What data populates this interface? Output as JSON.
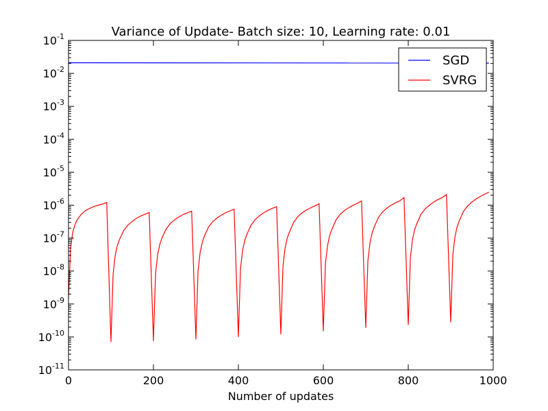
{
  "chart_data": {
    "type": "line",
    "title": "Variance of Update- Batch size: 10, Learning rate: 0.01",
    "xlabel": "Number of updates",
    "ylabel": "",
    "xlim": [
      0,
      1000
    ],
    "ylim": [
      1e-11,
      0.1
    ],
    "yscale": "log",
    "grid": false,
    "legend_position": "top-right",
    "x_ticks": [
      0,
      200,
      400,
      600,
      800,
      1000
    ],
    "y_ticks": [
      {
        "base": "10",
        "exp": "-11",
        "value": 1e-11
      },
      {
        "base": "10",
        "exp": "-10",
        "value": 1e-10
      },
      {
        "base": "10",
        "exp": "-9",
        "value": 1e-09
      },
      {
        "base": "10",
        "exp": "-8",
        "value": 1e-08
      },
      {
        "base": "10",
        "exp": "-7",
        "value": 1e-07
      },
      {
        "base": "10",
        "exp": "-6",
        "value": 1e-06
      },
      {
        "base": "10",
        "exp": "-5",
        "value": 1e-05
      },
      {
        "base": "10",
        "exp": "-4",
        "value": 0.0001
      },
      {
        "base": "10",
        "exp": "-3",
        "value": 0.001
      },
      {
        "base": "10",
        "exp": "-2",
        "value": 0.01
      },
      {
        "base": "10",
        "exp": "-1",
        "value": 0.1
      }
    ],
    "series": [
      {
        "name": "SGD",
        "color": "#0000ff",
        "x": [
          0,
          990
        ],
        "y": [
          0.021,
          0.0205
        ]
      },
      {
        "name": "SVRG",
        "color": "#ff0000",
        "x": [
          0,
          5,
          10,
          15,
          20,
          30,
          40,
          50,
          60,
          70,
          80,
          90,
          100,
          105,
          110,
          115,
          120,
          130,
          140,
          150,
          160,
          170,
          180,
          190,
          200,
          205,
          210,
          215,
          220,
          230,
          240,
          250,
          260,
          270,
          280,
          290,
          300,
          305,
          310,
          315,
          320,
          330,
          340,
          350,
          360,
          370,
          380,
          390,
          400,
          405,
          410,
          415,
          420,
          430,
          440,
          450,
          460,
          470,
          480,
          490,
          500,
          505,
          510,
          515,
          520,
          530,
          540,
          550,
          560,
          570,
          580,
          590,
          600,
          605,
          610,
          615,
          620,
          630,
          640,
          650,
          660,
          670,
          680,
          690,
          700,
          705,
          710,
          715,
          720,
          730,
          740,
          750,
          760,
          770,
          780,
          790,
          800,
          805,
          810,
          815,
          820,
          830,
          840,
          850,
          860,
          870,
          880,
          890,
          900,
          905,
          910,
          915,
          920,
          930,
          940,
          950,
          960,
          970,
          980,
          990
        ],
        "y": [
          1.5e-09,
          5e-08,
          1.5e-07,
          2.5e-07,
          3.5e-07,
          5.3e-07,
          6.8e-07,
          8e-07,
          9.1e-07,
          1e-06,
          1.08e-06,
          1.2e-06,
          7e-11,
          8e-09,
          3e-08,
          6e-08,
          9e-08,
          1.7e-07,
          2.5e-07,
          3.2e-07,
          4e-07,
          4.7e-07,
          5.3e-07,
          6e-07,
          7.5e-11,
          8.5e-09,
          3.2e-08,
          6.5e-08,
          1e-07,
          1.9e-07,
          2.8e-07,
          3.6e-07,
          4.4e-07,
          5.2e-07,
          5.9e-07,
          6.6e-07,
          8.5e-11,
          1e-08,
          3.7e-08,
          7.5e-08,
          1.15e-07,
          2.2e-07,
          3.2e-07,
          4.1e-07,
          5e-07,
          5.9e-07,
          6.7e-07,
          7.5e-07,
          1e-10,
          1.2e-08,
          4.3e-08,
          8.5e-08,
          1.3e-07,
          2.5e-07,
          3.7e-07,
          4.8e-07,
          5.9e-07,
          7e-07,
          8e-07,
          9e-07,
          1.2e-10,
          1.4e-08,
          5e-08,
          1e-07,
          1.5e-07,
          3e-07,
          4.5e-07,
          5.8e-07,
          7.1e-07,
          8.3e-07,
          9.5e-07,
          1.1e-06,
          1.5e-10,
          1.7e-08,
          6e-08,
          1.2e-07,
          1.8e-07,
          3.6e-07,
          5.3e-07,
          6.9e-07,
          8.4e-07,
          9.9e-07,
          1.13e-06,
          1.35e-06,
          1.9e-10,
          2.1e-08,
          7.3e-08,
          1.45e-07,
          2.2e-07,
          4.3e-07,
          6.3e-07,
          8.2e-07,
          1e-06,
          1.18e-06,
          1.35e-06,
          1.7e-06,
          2.3e-10,
          2.6e-08,
          9e-08,
          1.8e-07,
          2.7e-07,
          5.3e-07,
          7.8e-07,
          1e-06,
          1.25e-06,
          1.48e-06,
          1.7e-06,
          2.1e-06,
          2.8e-10,
          3.2e-08,
          1.1e-07,
          2.2e-07,
          3.3e-07,
          6.5e-07,
          9.5e-07,
          1.25e-06,
          1.55e-06,
          1.85e-06,
          2.15e-06,
          2.5e-06
        ]
      }
    ]
  }
}
